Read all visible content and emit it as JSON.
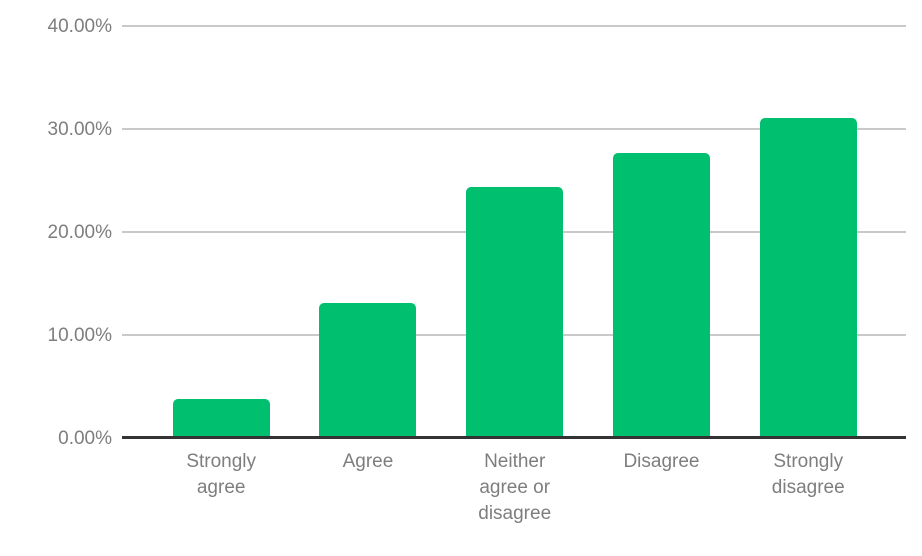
{
  "chart_data": {
    "type": "bar",
    "title": "",
    "xlabel": "",
    "ylabel": "",
    "categories": [
      "Strongly agree",
      "Agree",
      "Neither agree or disagree",
      "Disagree",
      "Strongly disagree"
    ],
    "x_tick_labels": [
      "Strongly\nagree",
      "Agree",
      "Neither\nagree or\ndisagree",
      "Disagree",
      "Strongly\ndisagree"
    ],
    "values": [
      3.8,
      13.1,
      24.4,
      27.7,
      31.1
    ],
    "value_unit": "%",
    "ylim": [
      0,
      40
    ],
    "y_ticks": [
      {
        "value": 0,
        "label": "0.00%"
      },
      {
        "value": 10,
        "label": "10.00%"
      },
      {
        "value": 20,
        "label": "20.00%"
      },
      {
        "value": 30,
        "label": "30.00%"
      },
      {
        "value": 40,
        "label": "40.00%"
      }
    ],
    "grid": true,
    "legend": "none",
    "colors": {
      "bar": "#00BF6F",
      "gridline": "#c9c9c9",
      "axis_line": "#333333",
      "tick_label": "#7e7e7e",
      "background": "#ffffff"
    }
  }
}
